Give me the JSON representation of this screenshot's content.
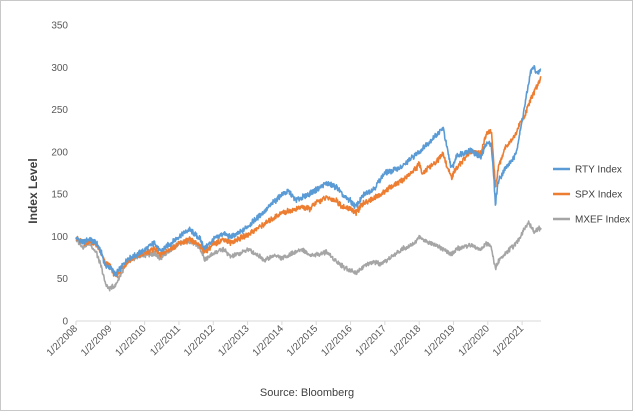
{
  "chart_data": {
    "type": "line",
    "title": "",
    "xlabel": "",
    "ylabel": "Index Level",
    "source": "Source: Bloomberg",
    "ylim": [
      0,
      350
    ],
    "yticks": [
      0,
      50,
      100,
      150,
      200,
      250,
      300,
      350
    ],
    "xlim": [
      2008.0,
      2021.55
    ],
    "xticks": [
      {
        "label": "1/2/2008",
        "value": 2008.0
      },
      {
        "label": "1/2/2009",
        "value": 2009.0
      },
      {
        "label": "1/2/2010",
        "value": 2010.0
      },
      {
        "label": "1/2/2011",
        "value": 2011.0
      },
      {
        "label": "1/2/2012",
        "value": 2012.0
      },
      {
        "label": "1/2/2013",
        "value": 2013.0
      },
      {
        "label": "1/2/2014",
        "value": 2014.0
      },
      {
        "label": "1/2/2015",
        "value": 2015.0
      },
      {
        "label": "1/2/2016",
        "value": 2016.0
      },
      {
        "label": "1/2/2017",
        "value": 2017.0
      },
      {
        "label": "1/2/2018",
        "value": 2018.0
      },
      {
        "label": "1/2/2019",
        "value": 2019.0
      },
      {
        "label": "1/2/2020",
        "value": 2020.0
      },
      {
        "label": "1/2/2021",
        "value": 2021.0
      }
    ],
    "legend_position": "right",
    "grid": false,
    "series": [
      {
        "name": "RTY Index",
        "color": "#5b9bd5",
        "points": [
          [
            2008.0,
            98
          ],
          [
            2008.2,
            93
          ],
          [
            2008.4,
            97
          ],
          [
            2008.6,
            92
          ],
          [
            2008.75,
            80
          ],
          [
            2008.85,
            66
          ],
          [
            2009.0,
            63
          ],
          [
            2009.15,
            55
          ],
          [
            2009.3,
            62
          ],
          [
            2009.5,
            74
          ],
          [
            2009.75,
            78
          ],
          [
            2010.0,
            84
          ],
          [
            2010.3,
            93
          ],
          [
            2010.45,
            82
          ],
          [
            2010.7,
            90
          ],
          [
            2011.0,
            100
          ],
          [
            2011.3,
            108
          ],
          [
            2011.6,
            98
          ],
          [
            2011.75,
            86
          ],
          [
            2012.0,
            96
          ],
          [
            2012.3,
            104
          ],
          [
            2012.5,
            99
          ],
          [
            2012.8,
            105
          ],
          [
            2013.0,
            112
          ],
          [
            2013.5,
            130
          ],
          [
            2014.0,
            150
          ],
          [
            2014.2,
            153
          ],
          [
            2014.4,
            143
          ],
          [
            2014.7,
            148
          ],
          [
            2015.0,
            155
          ],
          [
            2015.3,
            163
          ],
          [
            2015.6,
            158
          ],
          [
            2015.8,
            147
          ],
          [
            2016.0,
            142
          ],
          [
            2016.15,
            135
          ],
          [
            2016.4,
            150
          ],
          [
            2016.7,
            157
          ],
          [
            2016.9,
            170
          ],
          [
            2017.0,
            175
          ],
          [
            2017.5,
            182
          ],
          [
            2017.9,
            197
          ],
          [
            2018.0,
            200
          ],
          [
            2018.5,
            220
          ],
          [
            2018.7,
            228
          ],
          [
            2018.85,
            196
          ],
          [
            2018.95,
            180
          ],
          [
            2019.1,
            196
          ],
          [
            2019.5,
            202
          ],
          [
            2019.8,
            193
          ],
          [
            2019.95,
            210
          ],
          [
            2020.1,
            210
          ],
          [
            2020.17,
            172
          ],
          [
            2020.22,
            138
          ],
          [
            2020.3,
            165
          ],
          [
            2020.5,
            180
          ],
          [
            2020.8,
            195
          ],
          [
            2020.95,
            225
          ],
          [
            2021.1,
            260
          ],
          [
            2021.25,
            295
          ],
          [
            2021.35,
            300
          ],
          [
            2021.45,
            292
          ],
          [
            2021.55,
            298
          ]
        ]
      },
      {
        "name": "SPX Index",
        "color": "#ed7d31",
        "points": [
          [
            2008.0,
            98
          ],
          [
            2008.2,
            92
          ],
          [
            2008.4,
            94
          ],
          [
            2008.6,
            90
          ],
          [
            2008.75,
            78
          ],
          [
            2008.85,
            68
          ],
          [
            2009.0,
            65
          ],
          [
            2009.15,
            52
          ],
          [
            2009.3,
            60
          ],
          [
            2009.5,
            70
          ],
          [
            2009.75,
            76
          ],
          [
            2010.0,
            80
          ],
          [
            2010.3,
            86
          ],
          [
            2010.45,
            78
          ],
          [
            2010.7,
            84
          ],
          [
            2011.0,
            91
          ],
          [
            2011.3,
            96
          ],
          [
            2011.6,
            90
          ],
          [
            2011.75,
            82
          ],
          [
            2012.0,
            90
          ],
          [
            2012.3,
            97
          ],
          [
            2012.5,
            93
          ],
          [
            2012.8,
            98
          ],
          [
            2013.0,
            102
          ],
          [
            2013.5,
            115
          ],
          [
            2014.0,
            128
          ],
          [
            2014.3,
            131
          ],
          [
            2014.6,
            135
          ],
          [
            2014.8,
            132
          ],
          [
            2015.0,
            140
          ],
          [
            2015.3,
            146
          ],
          [
            2015.6,
            142
          ],
          [
            2015.8,
            134
          ],
          [
            2016.0,
            133
          ],
          [
            2016.15,
            128
          ],
          [
            2016.4,
            140
          ],
          [
            2016.7,
            146
          ],
          [
            2016.9,
            150
          ],
          [
            2017.0,
            154
          ],
          [
            2017.5,
            166
          ],
          [
            2017.9,
            180
          ],
          [
            2018.0,
            185
          ],
          [
            2018.1,
            175
          ],
          [
            2018.5,
            188
          ],
          [
            2018.7,
            198
          ],
          [
            2018.85,
            178
          ],
          [
            2018.95,
            170
          ],
          [
            2019.1,
            182
          ],
          [
            2019.5,
            200
          ],
          [
            2019.8,
            198
          ],
          [
            2019.95,
            220
          ],
          [
            2020.1,
            225
          ],
          [
            2020.17,
            190
          ],
          [
            2020.22,
            158
          ],
          [
            2020.3,
            180
          ],
          [
            2020.5,
            205
          ],
          [
            2020.8,
            220
          ],
          [
            2020.95,
            235
          ],
          [
            2021.1,
            245
          ],
          [
            2021.25,
            262
          ],
          [
            2021.35,
            270
          ],
          [
            2021.45,
            280
          ],
          [
            2021.55,
            288
          ]
        ]
      },
      {
        "name": "MXEF Index",
        "color": "#a5a5a5",
        "points": [
          [
            2008.0,
            96
          ],
          [
            2008.2,
            88
          ],
          [
            2008.4,
            92
          ],
          [
            2008.6,
            80
          ],
          [
            2008.75,
            62
          ],
          [
            2008.85,
            45
          ],
          [
            2008.95,
            38
          ],
          [
            2009.05,
            40
          ],
          [
            2009.15,
            42
          ],
          [
            2009.3,
            55
          ],
          [
            2009.5,
            68
          ],
          [
            2009.75,
            75
          ],
          [
            2010.0,
            78
          ],
          [
            2010.3,
            80
          ],
          [
            2010.45,
            74
          ],
          [
            2010.7,
            83
          ],
          [
            2011.0,
            92
          ],
          [
            2011.3,
            95
          ],
          [
            2011.6,
            88
          ],
          [
            2011.75,
            72
          ],
          [
            2012.0,
            80
          ],
          [
            2012.3,
            85
          ],
          [
            2012.5,
            76
          ],
          [
            2012.8,
            80
          ],
          [
            2013.0,
            85
          ],
          [
            2013.3,
            78
          ],
          [
            2013.5,
            72
          ],
          [
            2013.8,
            78
          ],
          [
            2014.0,
            74
          ],
          [
            2014.3,
            80
          ],
          [
            2014.6,
            85
          ],
          [
            2014.8,
            78
          ],
          [
            2015.0,
            78
          ],
          [
            2015.3,
            82
          ],
          [
            2015.6,
            70
          ],
          [
            2015.8,
            64
          ],
          [
            2016.0,
            60
          ],
          [
            2016.15,
            57
          ],
          [
            2016.4,
            65
          ],
          [
            2016.7,
            70
          ],
          [
            2016.9,
            66
          ],
          [
            2017.0,
            70
          ],
          [
            2017.5,
            85
          ],
          [
            2017.9,
            93
          ],
          [
            2018.0,
            100
          ],
          [
            2018.1,
            96
          ],
          [
            2018.5,
            90
          ],
          [
            2018.7,
            85
          ],
          [
            2018.85,
            80
          ],
          [
            2018.95,
            79
          ],
          [
            2019.1,
            85
          ],
          [
            2019.5,
            90
          ],
          [
            2019.8,
            84
          ],
          [
            2019.95,
            92
          ],
          [
            2020.1,
            88
          ],
          [
            2020.17,
            72
          ],
          [
            2020.22,
            62
          ],
          [
            2020.3,
            70
          ],
          [
            2020.5,
            80
          ],
          [
            2020.8,
            90
          ],
          [
            2020.95,
            100
          ],
          [
            2021.1,
            112
          ],
          [
            2021.2,
            116
          ],
          [
            2021.35,
            106
          ],
          [
            2021.45,
            108
          ],
          [
            2021.55,
            110
          ]
        ]
      }
    ]
  }
}
